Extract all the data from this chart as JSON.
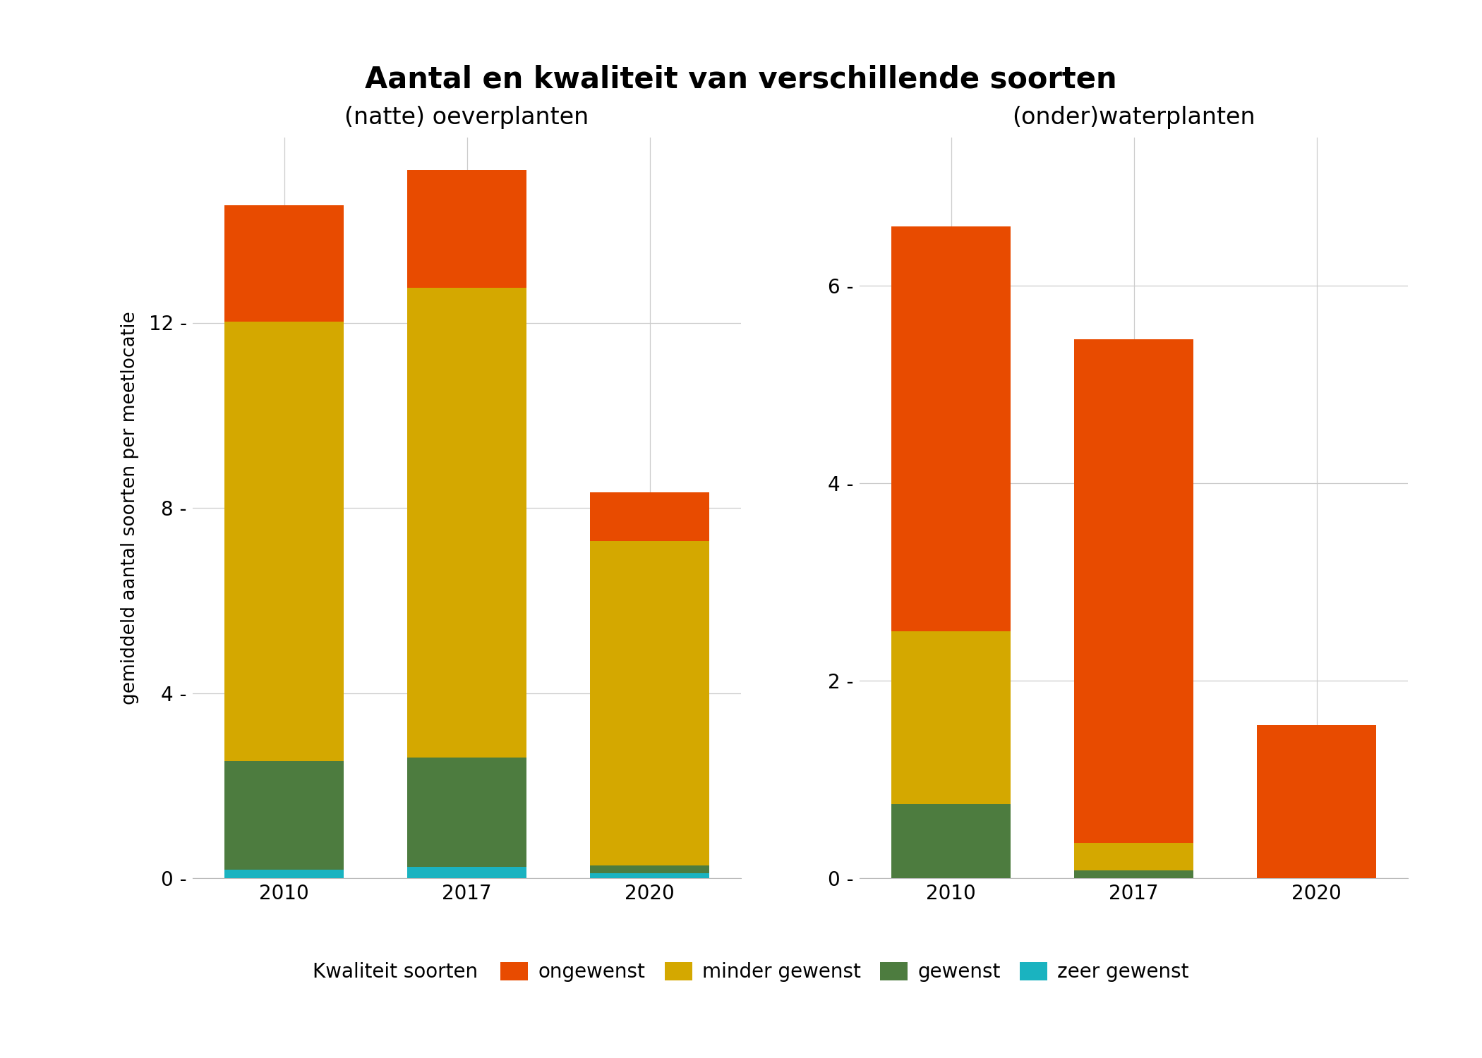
{
  "title": "Aantal en kwaliteit van verschillende soorten",
  "subtitle_left": "(natte) oeverplanten",
  "subtitle_right": "(onder)waterplanten",
  "ylabel": "gemiddeld aantal soorten per meetlocatie",
  "years": [
    "2010",
    "2017",
    "2020"
  ],
  "categories": [
    "zeer gewenst",
    "gewenst",
    "minder gewenst",
    "ongewenst"
  ],
  "colors": [
    "#1ab3c0",
    "#4d7c3f",
    "#d4a800",
    "#e84b00"
  ],
  "left_data": {
    "zeer gewenst": [
      0.18,
      0.25,
      0.1
    ],
    "gewenst": [
      2.35,
      2.35,
      0.18
    ],
    "minder gewenst": [
      9.5,
      10.15,
      7.0
    ],
    "ongewenst": [
      2.5,
      2.55,
      1.05
    ]
  },
  "right_data": {
    "zeer gewenst": [
      0.0,
      0.0,
      0.0
    ],
    "gewenst": [
      0.75,
      0.08,
      0.0
    ],
    "minder gewenst": [
      1.75,
      0.28,
      0.0
    ],
    "ongewenst": [
      4.1,
      5.1,
      1.55
    ]
  },
  "left_ylim": [
    0,
    16
  ],
  "left_yticks": [
    0,
    4,
    8,
    12
  ],
  "right_ylim": [
    0,
    7.5
  ],
  "right_yticks": [
    0,
    2,
    4,
    6
  ],
  "legend_title": "Kwaliteit soorten",
  "legend_labels": [
    "ongewenst",
    "minder gewenst",
    "gewenst",
    "zeer gewenst"
  ],
  "background_color": "#ffffff",
  "panel_background": "#ffffff",
  "grid_color": "#cccccc"
}
